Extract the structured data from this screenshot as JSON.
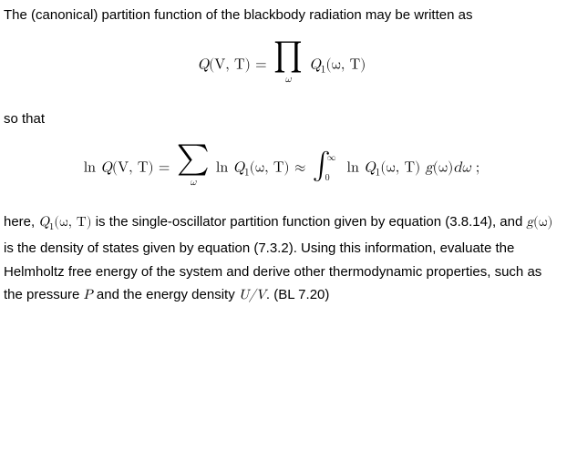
{
  "p1": "The (canonical) partition function of the blackbody radiation may be written as",
  "eq1": {
    "lhs_func": "Q",
    "lhs_args": "(V, T)",
    "equals": " = ",
    "prod_sub": "ω",
    "rhs_func": "Q",
    "rhs_sub": "1",
    "rhs_args": "(ω, T)"
  },
  "p2": "so that",
  "eq2": {
    "ln": "ln ",
    "Q": "Q",
    "argsVT": "(V, T)",
    "equals": " = ",
    "sum_sub": "ω",
    "Q1": "Q",
    "sub1": "1",
    "argswT": "(ω, T)",
    "approx": " ≈ ",
    "int_lb": "0",
    "int_ub": "∞",
    "g": "g",
    "argw": "(ω)",
    "dw": "dω",
    "semicolon": " ;"
  },
  "p3": {
    "t1": "here, ",
    "q1": "Q",
    "q1sub": "1",
    "q1args": "(ω, T)",
    "t2": " is the single-oscillator partition function given by equation (3.8.14), and ",
    "g": "g",
    "gargs": "(ω)",
    "t3": " is the density of states given by equation (7.3.2). Using this information, evaluate the Helmholtz free energy of the system and derive other thermodynamic properties, such as the pressure ",
    "P": "P",
    "t4": " and the energy density ",
    "UV": "U/V",
    "t5": ". (BL 7.20)"
  }
}
